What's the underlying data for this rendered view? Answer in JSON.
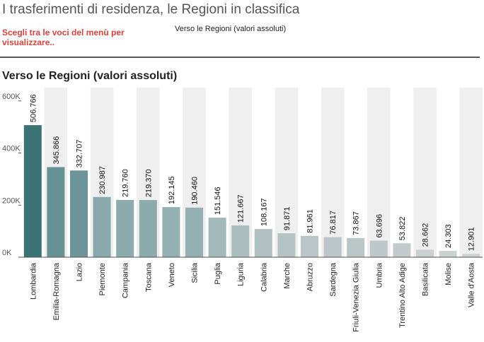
{
  "header": {
    "title": "I trasferimenti di residenza, le Regioni in classifica",
    "menu_prompt": "Scegli tra le voci del menù per visualizzare..",
    "menu_selected": "Verso le Regioni (valori assoluti)"
  },
  "chart_data": {
    "type": "bar",
    "title": "Verso le Regioni (valori assoluti)",
    "xlabel": "",
    "ylabel": "",
    "ylim": [
      0,
      640000
    ],
    "yticks": [
      0,
      200000,
      400000,
      600000
    ],
    "ytick_labels": [
      "0K",
      "200K",
      "400K",
      "600K"
    ],
    "grid": false,
    "categories": [
      "Lombardia",
      "Emilia-Romagna",
      "Lazio",
      "Piemonte",
      "Campania",
      "Toscana",
      "Veneto",
      "Sicilia",
      "Puglia",
      "Liguria",
      "Calabria",
      "Marche",
      "Abruzzo",
      "Sardegna",
      "Friuli-Venezia Giulia",
      "Umbria",
      "Trentino Alto Adige",
      "Basilicata",
      "Molise",
      "Valle d'Aosta"
    ],
    "values": [
      506766,
      345866,
      332707,
      230987,
      219760,
      219370,
      192145,
      190460,
      151546,
      121667,
      108167,
      91871,
      81961,
      76817,
      73867,
      63696,
      53822,
      28662,
      24303,
      12901
    ],
    "value_labels": [
      "506.766",
      "345.866",
      "332.707",
      "230.987",
      "219.760",
      "219.370",
      "192.145",
      "190.460",
      "151.546",
      "121.667",
      "108.167",
      "91.871",
      "81.961",
      "76.817",
      "73.867",
      "63.696",
      "53.822",
      "28.662",
      "24.303",
      "12.901"
    ],
    "colors": {
      "color_max": "#3b7375",
      "color_mid": "#7fa3a6",
      "color_min": "#cfd2d2",
      "band": "#efefef",
      "axis": "#555555"
    }
  }
}
